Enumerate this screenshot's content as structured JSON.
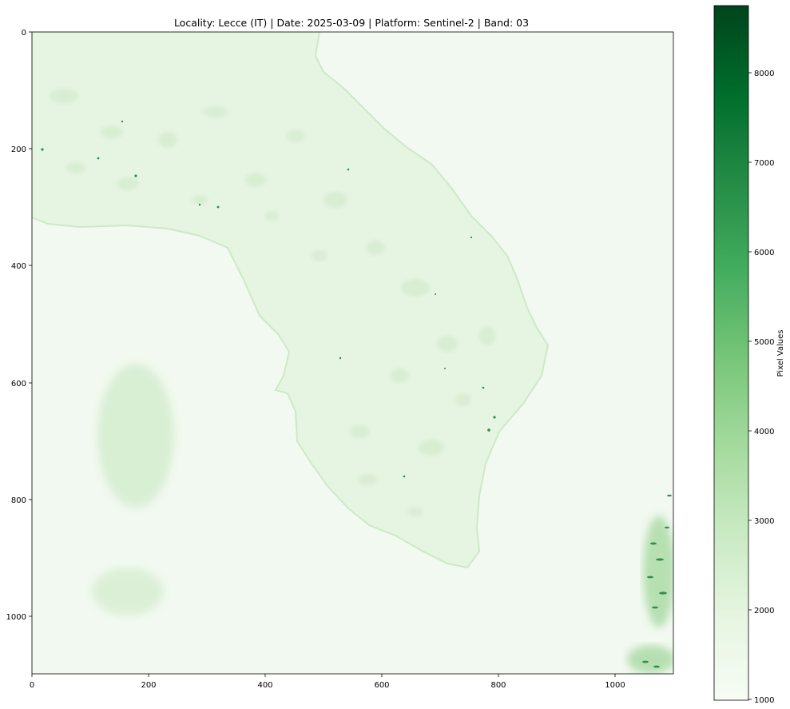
{
  "figure": {
    "title": "Locality: Lecce (IT)  |  Date: 2025-03-09  |  Platform: Sentinel-2  |  Band: 03"
  },
  "image_axes": {
    "x_ticks": [
      "0",
      "200",
      "400",
      "600",
      "800",
      "1000"
    ],
    "y_ticks": [
      "0",
      "200",
      "400",
      "600",
      "800",
      "1000"
    ]
  },
  "colorbar": {
    "label": "Pixel Values",
    "ticks": [
      "1000",
      "2000",
      "3000",
      "4000",
      "5000",
      "6000",
      "7000",
      "8000"
    ],
    "colormap": "Greens",
    "range": [
      950,
      8780
    ]
  },
  "colors": {
    "background_sea": "#f2f9f0",
    "land": "#e6f4e3",
    "land_patch": "#d8eed3",
    "cloud": "#d5edd0",
    "dark_green": "#00441b",
    "mid_green": "#41ab5d",
    "light_green": "#c7e9c0"
  }
}
